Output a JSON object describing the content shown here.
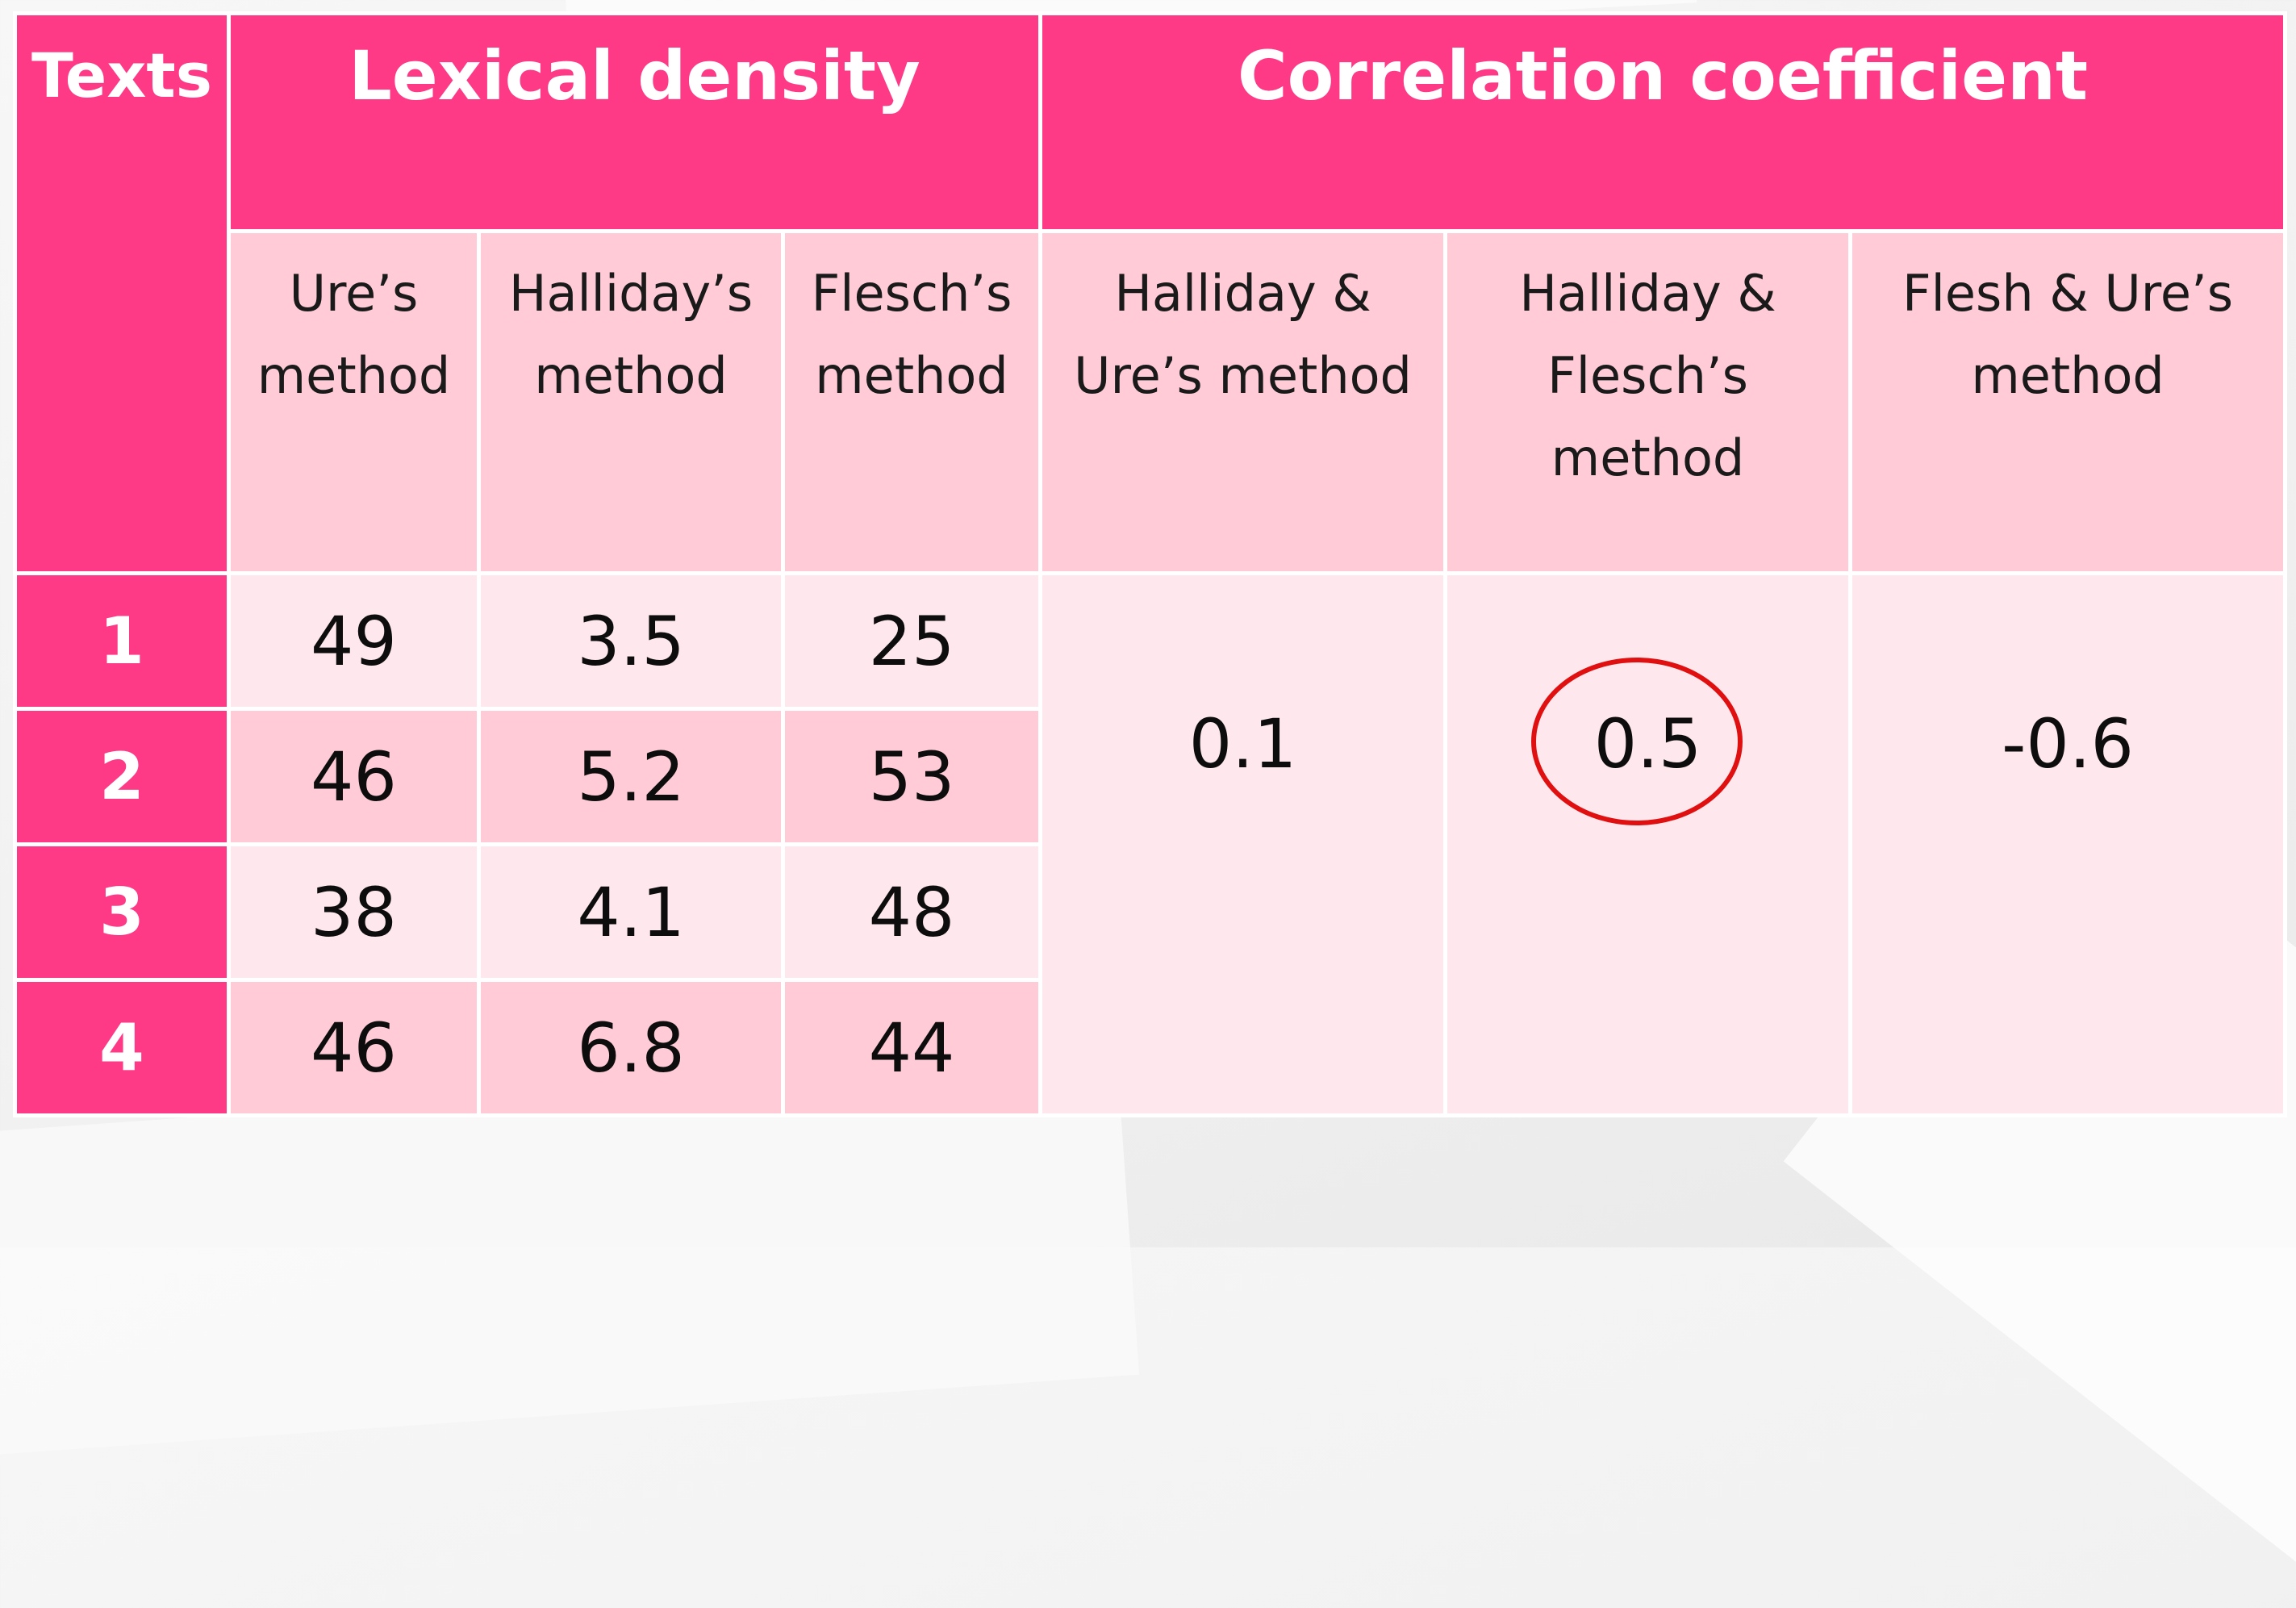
{
  "table": {
    "header": {
      "texts": "Texts",
      "lexical_density": "Lexical density",
      "correlation_coefficient": "Correlation coefficient"
    },
    "subheaders": {
      "ures_method": "Ure’s method",
      "hallidays_method": "Halliday’s method",
      "fleschs_method": "Flesch’s method",
      "halliday_ure": "Halliday & Ure’s method",
      "halliday_flesch": "Halliday & Flesch’s method",
      "flesh_ure": "Flesh & Ure’s method"
    },
    "rows": [
      {
        "text": "1",
        "ure": "49",
        "halliday": "3.5",
        "flesch": "25"
      },
      {
        "text": "2",
        "ure": "46",
        "halliday": "5.2",
        "flesch": "53"
      },
      {
        "text": "3",
        "ure": "38",
        "halliday": "4.1",
        "flesch": "48"
      },
      {
        "text": "4",
        "ure": "46",
        "halliday": "6.8",
        "flesch": "44"
      }
    ],
    "correlations": {
      "halliday_ure": "0.1",
      "halliday_flesch": "0.5",
      "flesh_ure": "-0.6"
    }
  },
  "colors": {
    "header_pink": "#fe3a87",
    "subheader_pink": "#ffcbd7",
    "light_pink": "#ffe8ed",
    "highlight_circle": "#e01010"
  }
}
